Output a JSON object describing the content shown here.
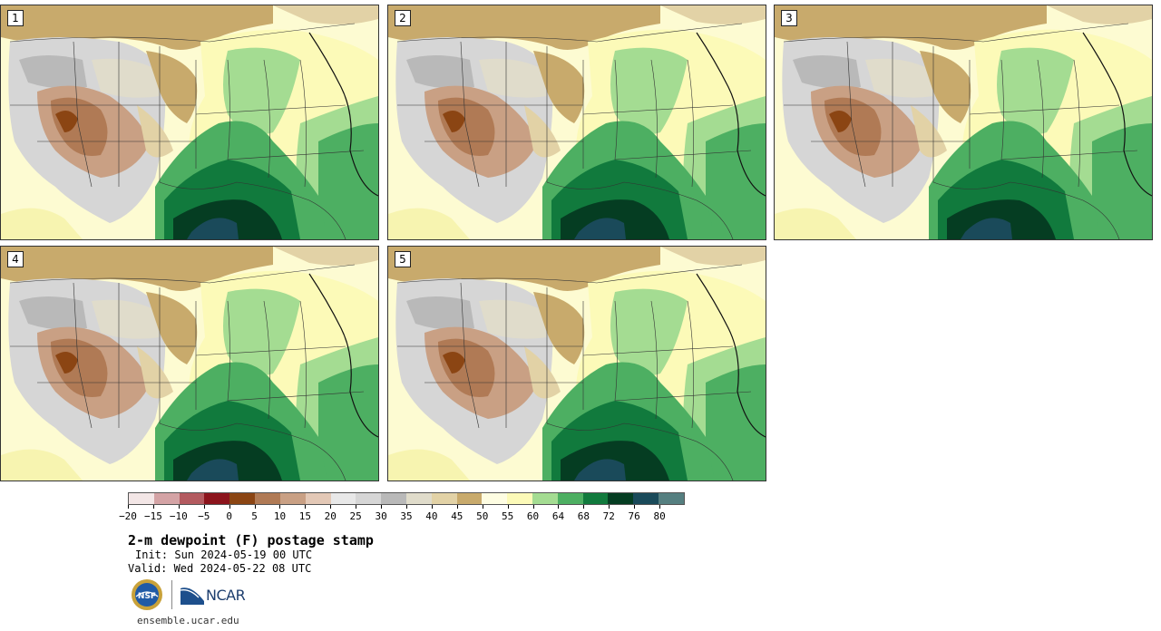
{
  "panels": [
    {
      "label": "1"
    },
    {
      "label": "2"
    },
    {
      "label": "3"
    },
    {
      "label": "4"
    },
    {
      "label": "5"
    }
  ],
  "colorbar": {
    "colors": [
      "#f3e6e6",
      "#d4a3a5",
      "#b35a5f",
      "#8c141c",
      "#8b4513",
      "#b07a55",
      "#c9a084",
      "#e3c8b6",
      "#e8e8e8",
      "#d6d6d6",
      "#b9b9b9",
      "#e0dccb",
      "#e2d2a6",
      "#c8aa6c",
      "#fefde2",
      "#fcfab8",
      "#a4dc92",
      "#4daf62",
      "#117a3d",
      "#053d22",
      "#1a4a5a",
      "#557f80"
    ],
    "tick_labels": [
      "−20",
      "−15",
      "−10",
      "−5",
      "0",
      "5",
      "10",
      "15",
      "20",
      "25",
      "30",
      "35",
      "40",
      "45",
      "50",
      "55",
      "60",
      "64",
      "68",
      "72",
      "76",
      "80"
    ]
  },
  "title": "2-m dewpoint (F) postage stamp",
  "init": "Init: Sun 2024-05-19 00 UTC",
  "valid": "Valid: Wed 2024-05-22 08 UTC",
  "logos": {
    "nsf_icon": "nsf-globe-icon",
    "ncar_icon": "ncar-logo-icon",
    "nsf_text": "NSF",
    "ncar_text": "NCAR"
  },
  "site_url": "ensemble.ucar.edu"
}
